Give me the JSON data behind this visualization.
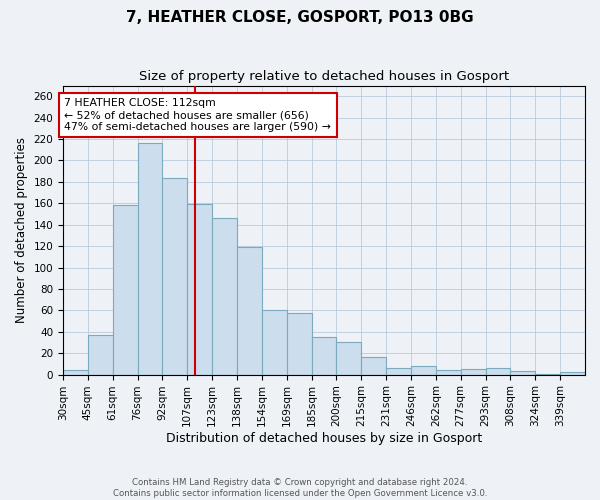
{
  "title": "7, HEATHER CLOSE, GOSPORT, PO13 0BG",
  "subtitle": "Size of property relative to detached houses in Gosport",
  "xlabel": "Distribution of detached houses by size in Gosport",
  "ylabel": "Number of detached properties",
  "footer_line1": "Contains HM Land Registry data © Crown copyright and database right 2024.",
  "footer_line2": "Contains public sector information licensed under the Open Government Licence v3.0.",
  "categories": [
    "30sqm",
    "45sqm",
    "61sqm",
    "76sqm",
    "92sqm",
    "107sqm",
    "123sqm",
    "138sqm",
    "154sqm",
    "169sqm",
    "185sqm",
    "200sqm",
    "215sqm",
    "231sqm",
    "246sqm",
    "262sqm",
    "277sqm",
    "293sqm",
    "308sqm",
    "324sqm",
    "339sqm"
  ],
  "values": [
    4,
    37,
    158,
    216,
    184,
    159,
    146,
    119,
    60,
    58,
    35,
    30,
    16,
    6,
    8,
    4,
    5,
    6,
    3,
    1,
    2
  ],
  "bar_color": "#ccdded",
  "bar_edge_color": "#7aaabb",
  "vline_color": "#cc0000",
  "vline_pos": 5.32,
  "annotation_text": "7 HEATHER CLOSE: 112sqm\n← 52% of detached houses are smaller (656)\n47% of semi-detached houses are larger (590) →",
  "annotation_box_color": "white",
  "annotation_box_edge": "#cc0000",
  "ylim": [
    0,
    270
  ],
  "yticks": [
    0,
    20,
    40,
    60,
    80,
    100,
    120,
    140,
    160,
    180,
    200,
    220,
    240,
    260
  ],
  "title_fontsize": 11,
  "subtitle_fontsize": 9.5,
  "tick_fontsize": 7.5,
  "ylabel_fontsize": 8.5,
  "xlabel_fontsize": 9,
  "background_color": "#eef2f7",
  "plot_background": "#eef2f7"
}
